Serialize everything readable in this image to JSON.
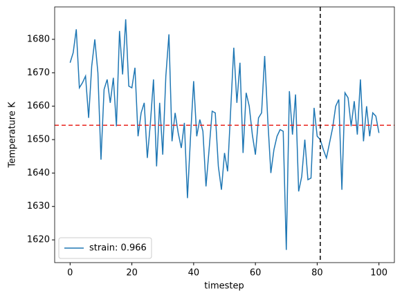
{
  "chart_data": {
    "type": "line",
    "xlabel": "timestep",
    "ylabel": "Temperature K",
    "x": [
      0,
      1,
      2,
      3,
      4,
      5,
      6,
      7,
      8,
      9,
      10,
      11,
      12,
      13,
      14,
      15,
      16,
      17,
      18,
      19,
      20,
      21,
      22,
      23,
      24,
      25,
      26,
      27,
      28,
      29,
      30,
      31,
      32,
      33,
      34,
      35,
      36,
      37,
      38,
      39,
      40,
      41,
      42,
      43,
      44,
      45,
      46,
      47,
      48,
      49,
      50,
      51,
      52,
      53,
      54,
      55,
      56,
      57,
      58,
      59,
      60,
      61,
      62,
      63,
      64,
      65,
      66,
      67,
      68,
      69,
      70,
      71,
      72,
      73,
      74,
      75,
      76,
      77,
      78,
      79,
      80,
      81,
      82,
      83,
      84,
      85,
      86,
      87,
      88,
      89,
      90,
      91,
      92,
      93,
      94,
      95,
      96,
      97,
      98,
      99,
      100
    ],
    "series": [
      {
        "name": "strain: 0.966",
        "color": "#1f77b4",
        "values": [
          1673,
          1676,
          1683,
          1665.5,
          1667,
          1669,
          1656.5,
          1672,
          1680,
          1670,
          1644,
          1665,
          1668,
          1661,
          1668.5,
          1654,
          1682.5,
          1669.5,
          1686,
          1666,
          1665.5,
          1671.5,
          1651,
          1658,
          1661,
          1644.5,
          1655,
          1668,
          1642,
          1661,
          1645.5,
          1669,
          1681.5,
          1649.5,
          1658,
          1652,
          1647.5,
          1655,
          1632.5,
          1651,
          1667.5,
          1651,
          1656,
          1652.5,
          1636,
          1647,
          1658.5,
          1658,
          1642,
          1635,
          1646,
          1640.5,
          1659,
          1677.5,
          1661,
          1673,
          1646,
          1664,
          1660,
          1651.5,
          1645.5,
          1656.5,
          1658,
          1675,
          1656,
          1640,
          1647,
          1651,
          1653,
          1652.5,
          1617,
          1664.5,
          1651.5,
          1663.5,
          1634.5,
          1639,
          1650,
          1638,
          1638.5,
          1659.5,
          1651,
          1650,
          1647,
          1644.5,
          1649,
          1653.5,
          1660,
          1662,
          1635,
          1664,
          1662.5,
          1654,
          1661.5,
          1651.5,
          1668,
          1649.5,
          1660,
          1651,
          1658,
          1657,
          1652
        ]
      }
    ],
    "hline": 1654.3,
    "hline_color": "#e8231c",
    "vline": 81,
    "vline_color": "#000000",
    "xlim": [
      -5,
      105
    ],
    "ylim": [
      1613.2,
      1689.7
    ],
    "xticks": [
      0,
      20,
      40,
      60,
      80,
      100
    ],
    "yticks": [
      1620,
      1630,
      1640,
      1650,
      1660,
      1670,
      1680
    ],
    "legend": "lower left"
  }
}
